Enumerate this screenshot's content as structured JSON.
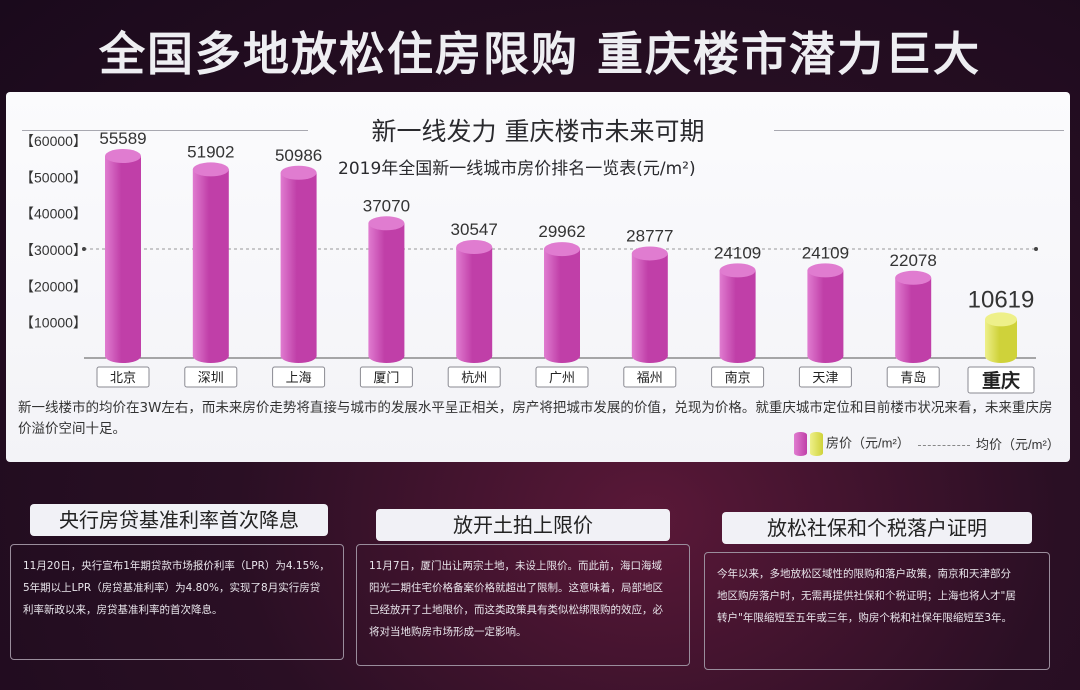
{
  "main_title": "全国多地放松住房限购  重庆楼市潜力巨大",
  "panel": {
    "title": "新一线发力  重庆楼市未来可期",
    "subtitle": "2019年全国新一线城市房价排名一览表(元/m²)",
    "note": "新一线楼市的均价在3W左右，而未来房价走势将直接与城市的发展水平呈正相关，房产将把城市发展的价值，兑现为价格。就重庆城市定位和目前楼市状况来看，未来重庆房价溢价空间十足。",
    "legend_house": "房价（元/m²）",
    "legend_avg": "均价（元/m²）"
  },
  "chart_data": {
    "type": "bar",
    "title": "2019年全国新一线城市房价排名一览表(元/m²)",
    "categories": [
      "北京",
      "深圳",
      "上海",
      "厦门",
      "杭州",
      "广州",
      "福州",
      "南京",
      "天津",
      "青岛",
      "重庆"
    ],
    "values": [
      55589,
      51902,
      50986,
      37070,
      30547,
      29962,
      28777,
      24109,
      24109,
      22078,
      10619
    ],
    "value_labels": [
      "55589",
      "51902",
      "50986",
      "37070",
      "30547",
      "29962",
      "28777",
      "24109",
      "24109",
      "22078",
      "10619"
    ],
    "highlight": "重庆",
    "average": 30000,
    "ylim": [
      0,
      60000
    ],
    "yticks": [
      "【10000】",
      "【20000】",
      "【30000】",
      "【40000】",
      "【50000】",
      "【60000】"
    ],
    "grid": false,
    "legend": "bottom-right",
    "colors": {
      "bar": "#c03fa8",
      "bar_light": "#e07cd0",
      "highlight": "#cfd23a",
      "highlight_light": "#eef08a"
    }
  },
  "boxes": [
    {
      "title": "央行房贷基准利率首次降息",
      "lines": [
        "11月20日，央行宣布1年期贷款市场报价利率（LPR）为4.15%，",
        "5年期以上LPR（房贷基准利率）为4.80%，实现了8月实行房贷",
        "利率新政以来，房贷基准利率的首次降息。"
      ]
    },
    {
      "title": "放开土拍上限价",
      "lines": [
        "11月7日，厦门出让两宗土地，未设上限价。而此前，海口海域",
        "阳光二期住宅价格备案价格就超出了限制。这意味着，局部地区",
        "已经放开了土地限价，而这类政策具有类似松绑限购的效应，必",
        "将对当地购房市场形成一定影响。"
      ]
    },
    {
      "title": "放松社保和个税落户证明",
      "lines": [
        "今年以来，多地放松区域性的限购和落户政策，南京和天津部分",
        "地区购房落户时，无需再提供社保和个税证明；上海也将人才\"居",
        "转户\"年限缩短至五年或三年，购房个税和社保年限缩短至3年。"
      ]
    }
  ]
}
